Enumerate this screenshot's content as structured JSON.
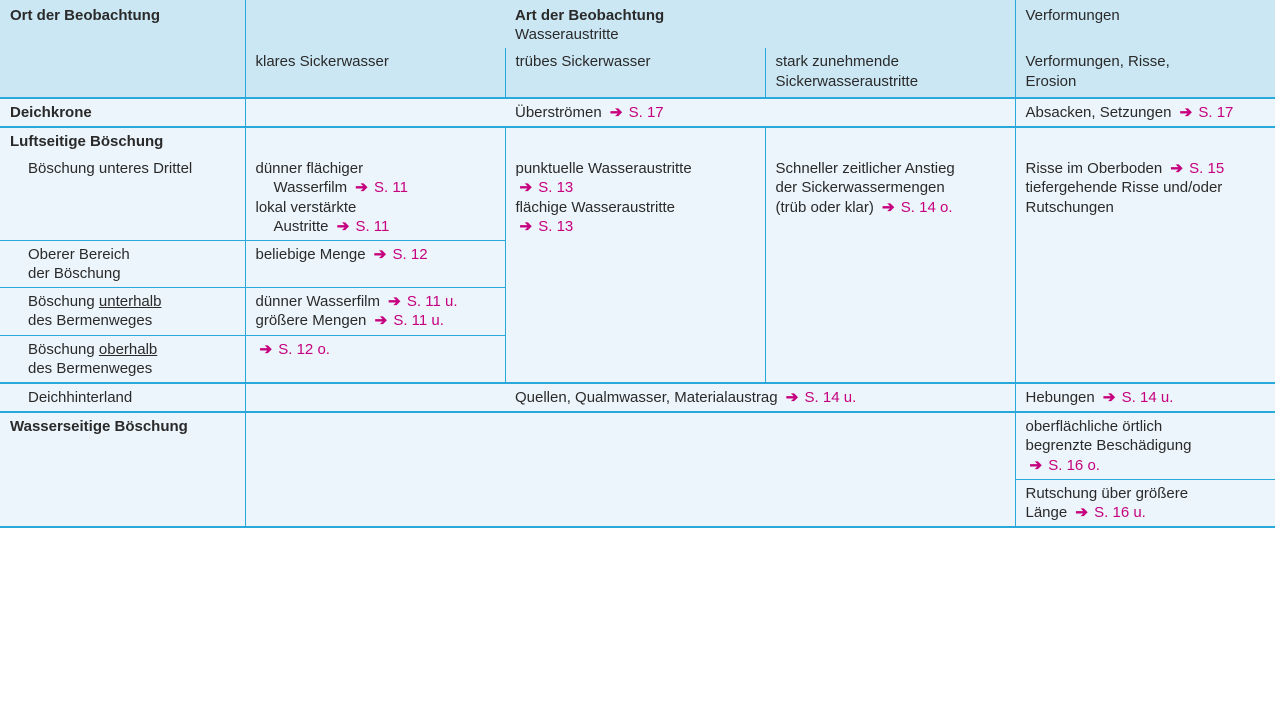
{
  "colors": {
    "header_bg": "#cbe7f4",
    "body_bg": "#ecf5fb",
    "border": "#29a9d9",
    "text": "#2a2a2a",
    "ref": "#c6007e"
  },
  "header": {
    "ort_label": "Ort der Beobachtung",
    "art_label": "Art der  Beobachtung",
    "wasseraustritte": "Wasseraustritte",
    "verformungen": "Verformungen",
    "sub_klar": "klares Sickerwasser",
    "sub_trueb": "trübes Sickerwasser",
    "sub_stark_l1": "stark zunehmende",
    "sub_stark_l2": "Sickerwasseraustritte",
    "sub_verf_l1": "Verformungen, Risse,",
    "sub_verf_l2": "Erosion"
  },
  "r_deichkrone": {
    "label": "Deichkrone",
    "mid": "Überströmen",
    "mid_ref": "S. 17",
    "right": "Absacken, Setzungen",
    "right_ref": "S. 17"
  },
  "r_luft_hdr": {
    "label": "Luftseitige Böschung"
  },
  "r_luft_a": {
    "label": "Böschung unteres Drittel",
    "c2_l1": "dünner flächiger",
    "c2_l2": "Wasserfilm",
    "c2_l2_ref": "S. 11",
    "c2_l3": "lokal verstärkte",
    "c2_l4": "Austritte",
    "c2_l4_ref": "S. 11",
    "c3_l1": "punktuelle Wasseraustritte",
    "c3_l1_ref": "S. 13",
    "c3_l2": "flächige Wasseraustritte",
    "c3_l2_ref": "S. 13",
    "c4_l1": "Schneller zeitlicher Anstieg",
    "c4_l2": "der Sickerwassermengen",
    "c4_l3": "(trüb oder klar)",
    "c4_ref": "S. 14 o.",
    "c5_l1": "Risse im Oberboden",
    "c5_l1_ref": "S. 15",
    "c5_l2": "tiefergehende Risse und/oder",
    "c5_l3": "Rutschungen"
  },
  "r_luft_b": {
    "label_l1": "Oberer Bereich",
    "label_l2": "der Böschung",
    "c2": "beliebige Menge",
    "c2_ref": "S. 12"
  },
  "r_luft_c": {
    "label_pre": "Böschung ",
    "label_u": "unterhalb",
    "label_l2": "des Bermenweges",
    "c2_l1": "dünner Wasserfilm",
    "c2_l1_ref": "S. 11 u.",
    "c2_l2": "größere Mengen",
    "c2_l2_ref": "S. 11 u."
  },
  "r_luft_d": {
    "label_pre": "Böschung ",
    "label_u": "oberhalb",
    "label_l2": "des Bermenweges",
    "c2_ref": "S. 12 o."
  },
  "r_hinter": {
    "label": "Deichhinterland",
    "mid": "Quellen, Qualmwasser, Materialaustrag",
    "mid_ref": "S. 14 u.",
    "right": "Hebungen",
    "right_ref": "S. 14 u."
  },
  "r_wasser_hdr": {
    "label": "Wasserseitige Böschung"
  },
  "r_wasser_a": {
    "c5_l1": "oberflächliche örtlich",
    "c5_l2": "begrenzte Beschädigung",
    "c5_ref": "S. 16 o."
  },
  "r_wasser_b": {
    "c5_l1": "Rutschung über größere",
    "c5_l2": "Länge",
    "c5_ref": "S. 16 u."
  }
}
